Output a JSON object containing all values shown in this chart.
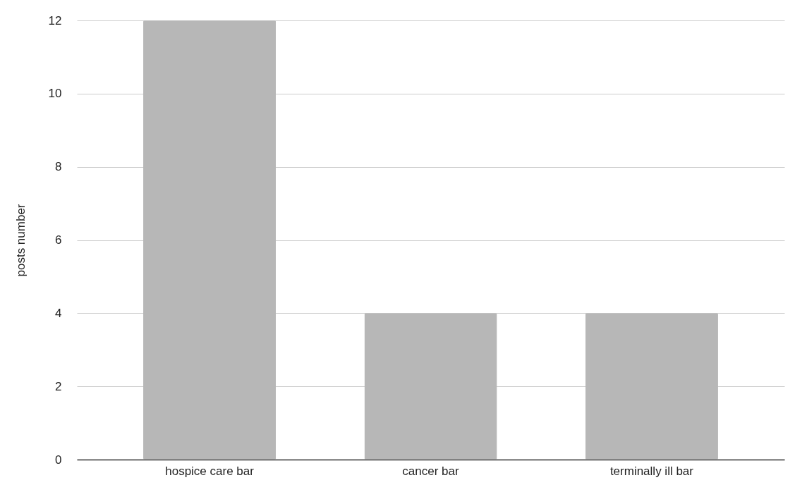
{
  "chart_data": {
    "type": "bar",
    "ylabel": "posts number",
    "categories": [
      "hospice care bar",
      "cancer bar",
      "terminally ill bar"
    ],
    "values": [
      12,
      4,
      4
    ],
    "color": "#b7b7b7",
    "ylim": [
      0,
      12
    ],
    "yticks": [
      0,
      2,
      4,
      6,
      8,
      10,
      12
    ],
    "grid": "y"
  }
}
